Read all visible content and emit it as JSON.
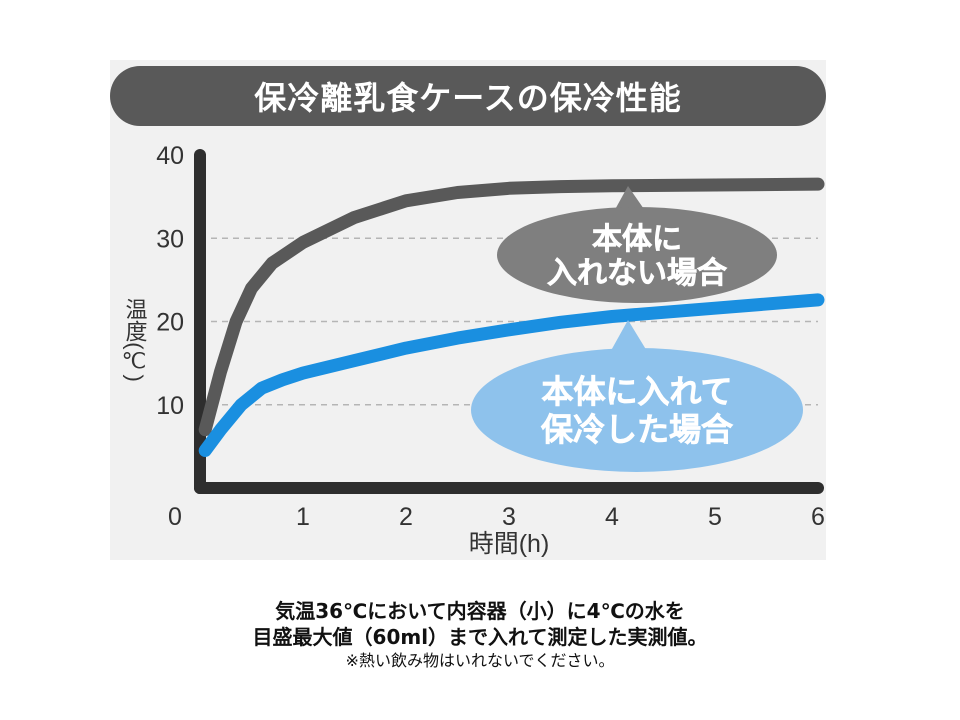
{
  "chart_data": {
    "type": "line",
    "title": "保冷離乳食ケースの保冷性能",
    "xlabel": "時間(h)",
    "ylabel": "温度(℃)",
    "xlim": [
      0,
      6
    ],
    "ylim": [
      0,
      40
    ],
    "x_ticks": [
      "0",
      "1",
      "2",
      "3",
      "4",
      "5",
      "6"
    ],
    "y_ticks": [
      "10",
      "20",
      "30",
      "40"
    ],
    "grid": "horizontal dashed",
    "series": [
      {
        "name": "本体に入れない場合",
        "color": "#595959",
        "x": [
          0.05,
          0.2,
          0.35,
          0.5,
          0.7,
          1.0,
          1.5,
          2.0,
          2.5,
          3.0,
          3.5,
          4.0,
          5.0,
          6.0
        ],
        "y": [
          7,
          14,
          20,
          24,
          27,
          29.5,
          32.5,
          34.5,
          35.5,
          36,
          36.2,
          36.3,
          36.4,
          36.5
        ]
      },
      {
        "name": "本体に入れて保冷した場合",
        "color": "#1a8fe0",
        "x": [
          0.05,
          0.2,
          0.4,
          0.6,
          0.8,
          1.0,
          1.5,
          2.0,
          2.5,
          3.0,
          3.5,
          4.0,
          5.0,
          6.0
        ],
        "y": [
          4.5,
          7,
          10,
          12,
          13,
          13.8,
          15.3,
          16.8,
          18,
          19,
          19.9,
          20.6,
          21.6,
          22.6
        ]
      }
    ],
    "annotations": [
      {
        "lines": [
          "本体に",
          "入れない場合"
        ],
        "fill": "#7f7f7f"
      },
      {
        "lines": [
          "本体に入れて",
          "保冷した場合"
        ],
        "fill": "#8ec2ec"
      }
    ]
  },
  "caption": {
    "line1": "気温36℃において内容器（小）に4℃の水を",
    "line2": "目盛最大値（60ml）まで入れて測定した実測値。",
    "note": "※熱い飲み物はいれないでください。"
  }
}
